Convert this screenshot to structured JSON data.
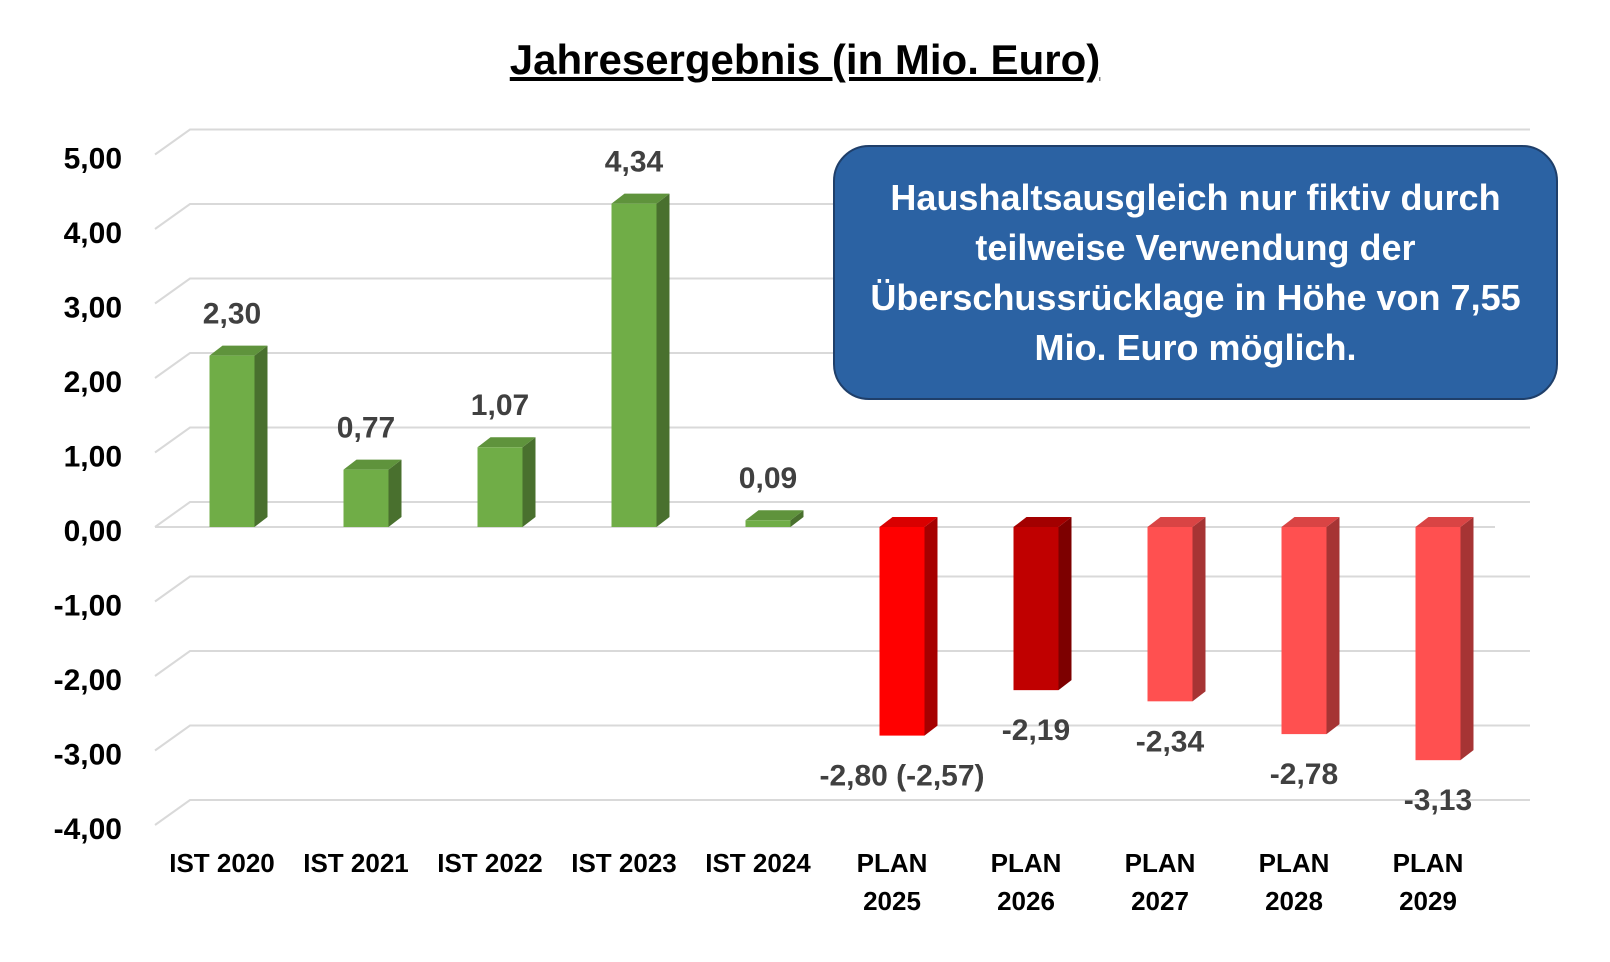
{
  "chart_data": {
    "type": "bar3d",
    "title": "Jahresergebnis (in Mio. Euro)",
    "categories": [
      "IST 2020",
      "IST 2021",
      "IST 2022",
      "IST 2023",
      "IST 2024",
      "PLAN 2025",
      "PLAN 2026",
      "PLAN 2027",
      "PLAN 2028",
      "PLAN 2029"
    ],
    "values": [
      2.3,
      0.77,
      1.07,
      4.34,
      0.09,
      -2.8,
      -2.19,
      -2.34,
      -2.78,
      -3.13
    ],
    "value_labels": [
      "2,30",
      "0,77",
      "1,07",
      "4,34",
      "0,09",
      "-2,80 (-2,57)",
      "-2,19",
      "-2,34",
      "-2,78",
      "-3,13"
    ],
    "colors": [
      "#70ad47",
      "#70ad47",
      "#70ad47",
      "#70ad47",
      "#70ad47",
      "#ff0000",
      "#c00000",
      "#ff5050",
      "#ff5050",
      "#ff5050"
    ],
    "ylim": [
      -4,
      5
    ],
    "yticks": [
      {
        "value": -4,
        "label": "-4,00"
      },
      {
        "value": -3,
        "label": "-3,00"
      },
      {
        "value": -2,
        "label": "-2,00"
      },
      {
        "value": -1,
        "label": "-1,00"
      },
      {
        "value": 0,
        "label": "0,00"
      },
      {
        "value": 1,
        "label": "1,00"
      },
      {
        "value": 2,
        "label": "2,00"
      },
      {
        "value": 3,
        "label": "3,00"
      },
      {
        "value": 4,
        "label": "4,00"
      },
      {
        "value": 5,
        "label": "5,00"
      }
    ],
    "grid": true,
    "annotation": "Haushaltsausgleich nur fiktiv durch teilweise Verwendung der Überschussrücklage in Höhe von 7,55 Mio. Euro möglich."
  }
}
